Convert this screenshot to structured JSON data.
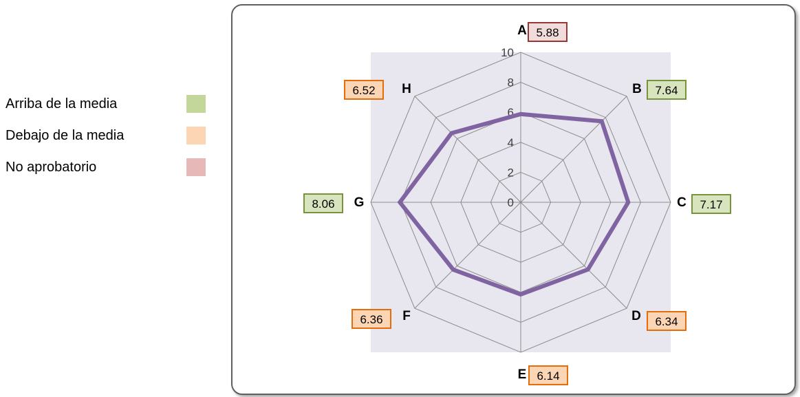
{
  "legend": {
    "items": [
      {
        "label": "Arriba de la media",
        "color": "#c4d79b"
      },
      {
        "label": "Debajo de la media",
        "color": "#fcd5b4"
      },
      {
        "label": "No aprobatorio",
        "color": "#e6b9b8"
      }
    ]
  },
  "colors": {
    "plot_bg": "#e8e6ef",
    "grid": "#8c8c8c",
    "series": "#8064a2",
    "above_fill": "#d7e4bd",
    "above_border": "#77933c",
    "below_fill": "#fcd5b4",
    "below_border": "#e46c0a",
    "fail_fill": "#f2dcdb",
    "fail_border": "#953735"
  },
  "chart_data": {
    "type": "radar",
    "categories": [
      "A",
      "B",
      "C",
      "D",
      "E",
      "F",
      "G",
      "H"
    ],
    "values": [
      5.88,
      7.64,
      7.17,
      6.34,
      6.14,
      6.36,
      8.06,
      6.52
    ],
    "value_labels": [
      "5.88",
      "7.64",
      "7.17",
      "6.34",
      "6.14",
      "6.36",
      "8.06",
      "6.52"
    ],
    "label_status": [
      "fail",
      "above",
      "above",
      "below",
      "below",
      "below",
      "above",
      "below"
    ],
    "rlim": [
      0,
      10
    ],
    "ticks": [
      "0",
      "2",
      "4",
      "6",
      "8",
      "10"
    ],
    "tick_values": [
      0,
      2,
      4,
      6,
      8,
      10
    ],
    "title": "",
    "grid": true
  }
}
